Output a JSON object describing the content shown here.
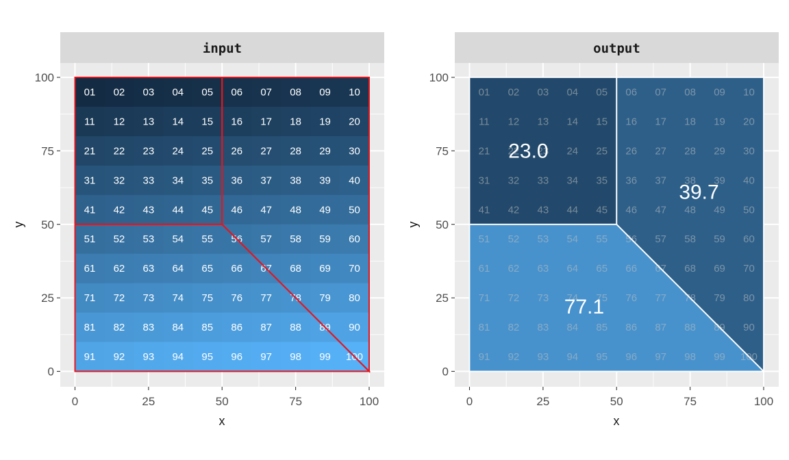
{
  "chart_data": [
    {
      "type": "heatmap",
      "panel": "input",
      "xlabel": "x",
      "ylabel": "y",
      "xlim": [
        0,
        100
      ],
      "ylim": [
        0,
        100
      ],
      "x_ticks": [
        0,
        25,
        50,
        75,
        100
      ],
      "y_ticks": [
        0,
        25,
        50,
        75,
        100
      ],
      "grid": true,
      "cells": {
        "rows": 10,
        "cols": 10,
        "labels": [
          [
            "01",
            "02",
            "03",
            "04",
            "05",
            "06",
            "07",
            "08",
            "09",
            "10"
          ],
          [
            "11",
            "12",
            "13",
            "14",
            "15",
            "16",
            "17",
            "18",
            "19",
            "20"
          ],
          [
            "21",
            "22",
            "23",
            "24",
            "25",
            "26",
            "27",
            "28",
            "29",
            "30"
          ],
          [
            "31",
            "32",
            "33",
            "34",
            "35",
            "36",
            "37",
            "38",
            "39",
            "40"
          ],
          [
            "41",
            "42",
            "43",
            "44",
            "45",
            "46",
            "47",
            "48",
            "49",
            "50"
          ],
          [
            "51",
            "52",
            "53",
            "54",
            "55",
            "56",
            "57",
            "58",
            "59",
            "60"
          ],
          [
            "61",
            "62",
            "63",
            "64",
            "65",
            "66",
            "67",
            "68",
            "69",
            "70"
          ],
          [
            "71",
            "72",
            "73",
            "74",
            "75",
            "76",
            "77",
            "78",
            "79",
            "80"
          ],
          [
            "81",
            "82",
            "83",
            "84",
            "85",
            "86",
            "87",
            "88",
            "89",
            "90"
          ],
          [
            "91",
            "92",
            "93",
            "94",
            "95",
            "96",
            "97",
            "98",
            "99",
            "100"
          ]
        ],
        "values": [
          [
            1,
            2,
            3,
            4,
            5,
            6,
            7,
            8,
            9,
            10
          ],
          [
            11,
            12,
            13,
            14,
            15,
            16,
            17,
            18,
            19,
            20
          ],
          [
            21,
            22,
            23,
            24,
            25,
            26,
            27,
            28,
            29,
            30
          ],
          [
            31,
            32,
            33,
            34,
            35,
            36,
            37,
            38,
            39,
            40
          ],
          [
            41,
            42,
            43,
            44,
            45,
            46,
            47,
            48,
            49,
            50
          ],
          [
            51,
            52,
            53,
            54,
            55,
            56,
            57,
            58,
            59,
            60
          ],
          [
            61,
            62,
            63,
            64,
            65,
            66,
            67,
            68,
            69,
            70
          ],
          [
            71,
            72,
            73,
            74,
            75,
            76,
            77,
            78,
            79,
            80
          ],
          [
            81,
            82,
            83,
            84,
            85,
            86,
            87,
            88,
            89,
            90
          ],
          [
            91,
            92,
            93,
            94,
            95,
            96,
            97,
            98,
            99,
            100
          ]
        ]
      },
      "zones": [
        {
          "polygon": [
            [
              0,
              100
            ],
            [
              50,
              100
            ],
            [
              50,
              50
            ],
            [
              0,
              50
            ]
          ]
        },
        {
          "polygon": [
            [
              50,
              100
            ],
            [
              100,
              100
            ],
            [
              100,
              0
            ],
            [
              50,
              50
            ]
          ]
        },
        {
          "polygon": [
            [
              0,
              50
            ],
            [
              50,
              50
            ],
            [
              100,
              0
            ],
            [
              0,
              0
            ]
          ]
        }
      ],
      "zone_outline_color": "#e8141c"
    },
    {
      "type": "heatmap",
      "panel": "output",
      "xlabel": "x",
      "ylabel": "y",
      "xlim": [
        0,
        100
      ],
      "ylim": [
        0,
        100
      ],
      "x_ticks": [
        0,
        25,
        50,
        75,
        100
      ],
      "y_ticks": [
        0,
        25,
        50,
        75,
        100
      ],
      "grid": true,
      "zones": [
        {
          "polygon": [
            [
              0,
              100
            ],
            [
              50,
              100
            ],
            [
              50,
              50
            ],
            [
              0,
              50
            ]
          ],
          "mean_label": "23.0",
          "value": 23.0,
          "label_pos": [
            20,
            75
          ]
        },
        {
          "polygon": [
            [
              50,
              100
            ],
            [
              100,
              100
            ],
            [
              100,
              0
            ],
            [
              50,
              50
            ]
          ],
          "mean_label": "39.7",
          "value": 39.7,
          "label_pos": [
            78,
            61
          ]
        },
        {
          "polygon": [
            [
              0,
              50
            ],
            [
              50,
              50
            ],
            [
              100,
              0
            ],
            [
              0,
              0
            ]
          ],
          "mean_label": "77.1",
          "value": 77.1,
          "label_pos": [
            39,
            22
          ]
        }
      ],
      "zone_outline_color": "#ffffff"
    }
  ],
  "colors": {
    "panel_bg": "#ebebeb",
    "strip_bg": "#d9d9d9",
    "gridline": "#ffffff",
    "scale_low": "#132b43",
    "scale_high": "#56b1f7",
    "cell_text_input": "#ffffff",
    "cell_text_output": "#bfbfbf"
  }
}
